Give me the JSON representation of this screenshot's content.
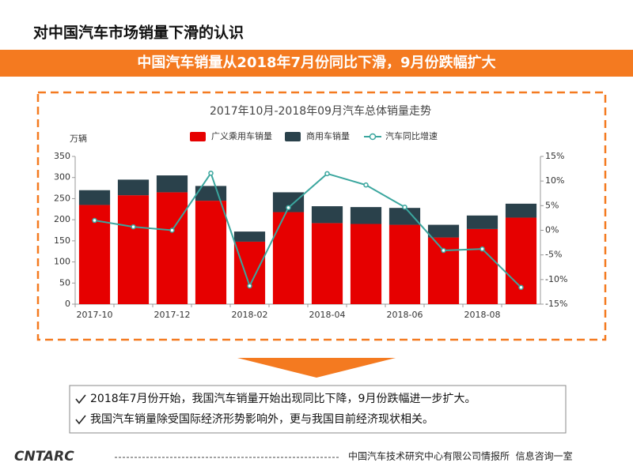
{
  "header": {
    "title": "对中国汽车市场销量下滑的认识",
    "banner": "中国汽车销量从2018年7月份同比下滑，9月份跌幅扩大"
  },
  "chart_data": {
    "type": "bar",
    "title": "2017年10月-2018年09月汽车总体销量走势",
    "y_label": "万辆",
    "categories": [
      "2017-10",
      null,
      "2017-12",
      null,
      "2018-02",
      null,
      "2018-04",
      null,
      "2018-06",
      null,
      "2018-08",
      null
    ],
    "series": [
      {
        "name": "广义乘用车销量",
        "type": "bar",
        "color": "#e60000",
        "values": [
          235,
          258,
          265,
          245,
          148,
          218,
          192,
          190,
          188,
          158,
          178,
          205
        ]
      },
      {
        "name": "商用车销量",
        "type": "bar",
        "color": "#2a414b",
        "values": [
          35,
          37,
          40,
          35,
          24,
          47,
          40,
          40,
          40,
          30,
          32,
          33
        ]
      },
      {
        "name": "汽车同比增速",
        "type": "line",
        "axis": "y2",
        "color": "#3aa69e",
        "values": [
          2,
          0.7,
          0,
          11.6,
          -11.3,
          4.6,
          11.5,
          9.2,
          4.7,
          -4.1,
          -3.8,
          -11.6
        ]
      }
    ],
    "ylim": [
      0,
      350
    ],
    "yticks": [
      0,
      50,
      100,
      150,
      200,
      250,
      300,
      350
    ],
    "y2lim": [
      -15,
      15
    ],
    "y2ticks": [
      {
        "value": -15,
        "label": "-15%"
      },
      {
        "value": -10,
        "label": "-10%"
      },
      {
        "value": -5,
        "label": "-5%"
      },
      {
        "value": 0,
        "label": "0%"
      },
      {
        "value": 5,
        "label": "5%"
      },
      {
        "value": 10,
        "label": "10%"
      },
      {
        "value": 15,
        "label": "15%"
      }
    ]
  },
  "bullets": [
    "2018年7月份开始，我国汽车销量开始出现同比下降，9月份跌幅进一步扩大。",
    "我国汽车销量除受国际经济形势影响外，更与我国目前经济现状相关。"
  ],
  "footer": {
    "logo": "CNTARC",
    "text": "中国汽车技术研究中心有限公司情报所  信息咨询一室"
  }
}
